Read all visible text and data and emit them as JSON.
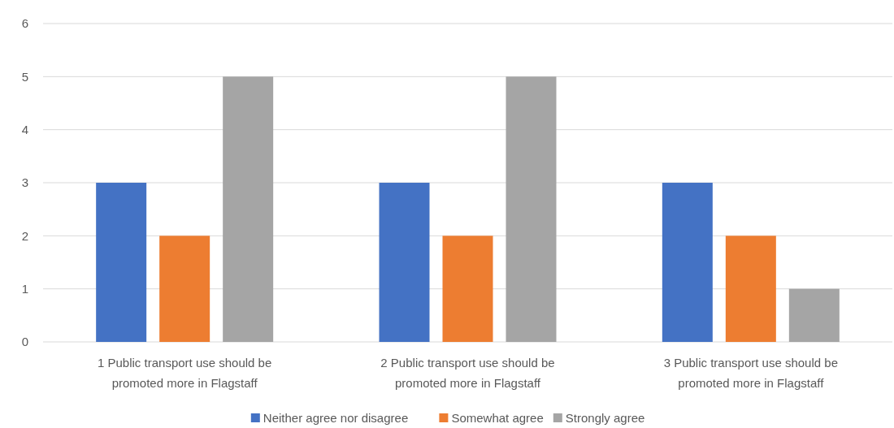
{
  "chart_data": {
    "type": "bar",
    "categories": [
      "1 Public transport use should be promoted more in Flagstaff",
      "2 Public transport use should be promoted more in Flagstaff",
      "3 Public transport use should be promoted more in Flagstaff"
    ],
    "series": [
      {
        "name": "Neither agree nor disagree",
        "color": "#4472c4",
        "values": [
          3,
          3,
          3
        ]
      },
      {
        "name": "Somewhat agree",
        "color": "#ed7d31",
        "values": [
          2,
          2,
          2
        ]
      },
      {
        "name": "Strongly agree",
        "color": "#a5a5a5",
        "values": [
          5,
          5,
          1
        ]
      }
    ],
    "ylim": [
      0,
      6
    ],
    "yticks": [
      0,
      1,
      2,
      3,
      4,
      5,
      6
    ],
    "grid": "y",
    "legend": "bottom"
  }
}
